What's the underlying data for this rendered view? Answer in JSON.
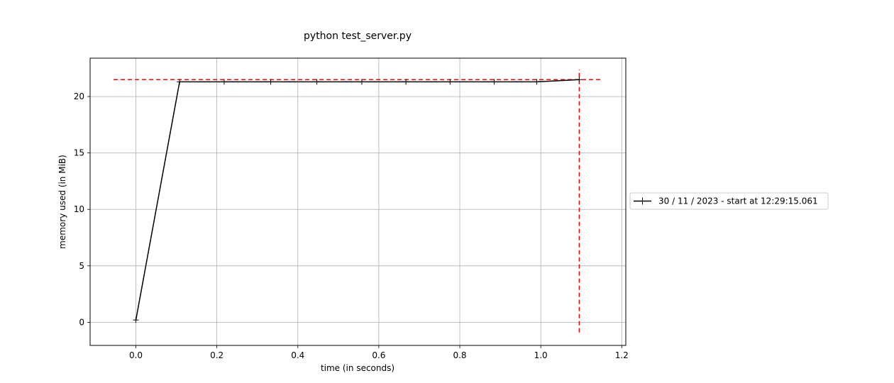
{
  "chart_data": {
    "type": "line",
    "title": "python test_server.py",
    "xlabel": "time (in seconds)",
    "ylabel": "memory used (in MiB)",
    "xlim": [
      -0.113,
      1.21
    ],
    "ylim": [
      -2.05,
      23.4
    ],
    "xticks": [
      0.0,
      0.2,
      0.4,
      0.6,
      0.8,
      1.0,
      1.2
    ],
    "xtick_labels": [
      "0.0",
      "0.2",
      "0.4",
      "0.6",
      "0.8",
      "1.0",
      "1.2"
    ],
    "yticks": [
      0,
      5,
      10,
      15,
      20
    ],
    "ytick_labels": [
      "0",
      "5",
      "10",
      "15",
      "20"
    ],
    "grid": true,
    "legend_position": "center-right, outside plot",
    "series": [
      {
        "name": "30 / 11 / 2023 - start at 12:29:15.061",
        "color": "#000000",
        "marker": "+",
        "x": [
          0.0,
          0.108,
          0.218,
          0.333,
          0.447,
          0.558,
          0.667,
          0.776,
          0.885,
          0.99,
          1.095
        ],
        "y": [
          0.2,
          21.3,
          21.3,
          21.3,
          21.3,
          21.3,
          21.3,
          21.3,
          21.3,
          21.3,
          21.5
        ]
      }
    ],
    "reference_lines": [
      {
        "orientation": "horizontal",
        "value": 21.5,
        "from": -0.055,
        "to": 1.15,
        "color": "#ff0000",
        "style": "dashed"
      },
      {
        "orientation": "vertical",
        "value": 1.095,
        "from": -0.9,
        "to": 22.4,
        "color": "#ff0000",
        "style": "dashed"
      }
    ]
  }
}
